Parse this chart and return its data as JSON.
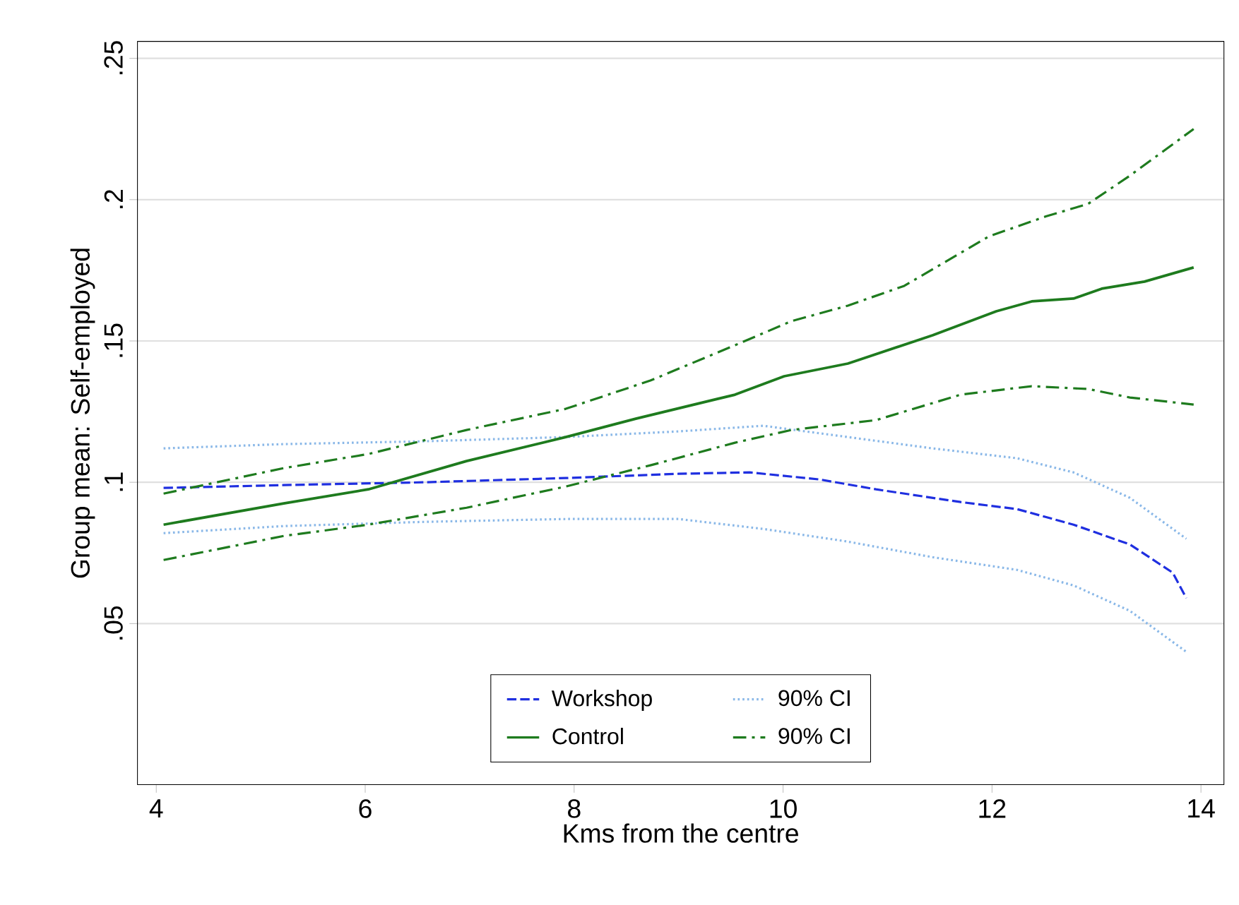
{
  "chart_data": {
    "type": "line",
    "xlabel": "Kms from the centre",
    "ylabel": "Group mean: Self-employed",
    "xlim": [
      3.82,
      14.22
    ],
    "ylim": [
      -0.007,
      0.256
    ],
    "xticks": [
      4,
      6,
      8,
      10,
      12,
      14
    ],
    "yticks": [
      {
        "value": 0.05,
        "label": ".05"
      },
      {
        "value": 0.1,
        "label": ".1"
      },
      {
        "value": 0.15,
        "label": ".15"
      },
      {
        "value": 0.2,
        "label": ".2"
      },
      {
        "value": 0.25,
        "label": ".25"
      }
    ],
    "grid": "y",
    "legend": "bottom",
    "series": [
      {
        "name": "Workshop",
        "color": "#1f2fe0",
        "line_style": "dashed",
        "x": [
          4.07,
          5.22,
          6.57,
          7.92,
          9.0,
          9.68,
          10.35,
          10.89,
          11.7,
          12.24,
          12.78,
          13.32,
          13.73,
          13.86
        ],
        "values": [
          0.098,
          0.099,
          0.1,
          0.1015,
          0.103,
          0.1035,
          0.101,
          0.0975,
          0.093,
          0.0905,
          0.085,
          0.078,
          0.068,
          0.059
        ]
      },
      {
        "name": "90% CI",
        "color": "#8ab8e8",
        "line_style": "dotted",
        "x": [
          4.07,
          5.22,
          6.57,
          7.92,
          9.0,
          9.81,
          10.62,
          11.43,
          12.24,
          12.78,
          13.32,
          13.86
        ],
        "values": [
          0.112,
          0.1135,
          0.1145,
          0.116,
          0.118,
          0.12,
          0.116,
          0.112,
          0.1085,
          0.1035,
          0.0945,
          0.08
        ]
      },
      {
        "color": "#8ab8e8",
        "line_style": "dotted",
        "x": [
          4.07,
          5.22,
          6.57,
          7.92,
          9.0,
          9.81,
          10.62,
          11.43,
          12.24,
          12.78,
          13.32,
          13.86
        ],
        "values": [
          0.082,
          0.0845,
          0.086,
          0.087,
          0.087,
          0.0835,
          0.079,
          0.0735,
          0.069,
          0.0635,
          0.0545,
          0.04
        ]
      },
      {
        "name": "Control",
        "color": "#1e7b1e",
        "line_style": "solid",
        "x": [
          4.07,
          5.22,
          6.03,
          6.97,
          7.92,
          8.59,
          9.54,
          10.01,
          10.62,
          11.43,
          12.04,
          12.38,
          12.78,
          13.05,
          13.46,
          13.93
        ],
        "values": [
          0.085,
          0.0925,
          0.0975,
          0.1075,
          0.116,
          0.1225,
          0.131,
          0.1375,
          0.142,
          0.152,
          0.1605,
          0.164,
          0.165,
          0.1685,
          0.171,
          0.176
        ]
      },
      {
        "name": "90% CI",
        "color": "#1e7b1e",
        "line_style": "dashdot",
        "x": [
          4.07,
          5.22,
          6.03,
          6.97,
          7.92,
          8.73,
          9.54,
          10.08,
          10.62,
          11.16,
          11.97,
          12.51,
          12.92,
          13.32,
          13.93
        ],
        "values": [
          0.096,
          0.105,
          0.11,
          0.1185,
          0.126,
          0.136,
          0.1485,
          0.157,
          0.1625,
          0.1695,
          0.187,
          0.194,
          0.1985,
          0.2085,
          0.225
        ]
      },
      {
        "color": "#1e7b1e",
        "line_style": "dashdot",
        "x": [
          4.07,
          5.22,
          6.03,
          6.97,
          7.92,
          8.73,
          9.54,
          10.08,
          10.89,
          11.7,
          12.38,
          12.92,
          13.32,
          13.93
        ],
        "values": [
          0.0725,
          0.081,
          0.085,
          0.091,
          0.0985,
          0.106,
          0.114,
          0.1185,
          0.122,
          0.131,
          0.134,
          0.133,
          0.13,
          0.1275
        ]
      }
    ]
  }
}
